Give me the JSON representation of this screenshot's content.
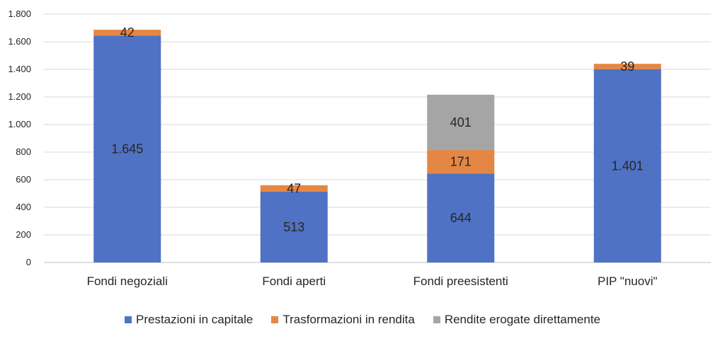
{
  "chart_data": {
    "type": "bar",
    "stacked": true,
    "categories": [
      "Fondi negoziali",
      "Fondi aperti",
      "Fondi preesistenti",
      "PIP \"nuovi\""
    ],
    "series": [
      {
        "name": "Prestazioni in capitale",
        "color": "#4f72c4",
        "values": [
          1645,
          513,
          644,
          1401
        ],
        "labels": [
          "1.645",
          "513",
          "644",
          "1.401"
        ]
      },
      {
        "name": "Trasformazioni in rendita",
        "color": "#e48744",
        "values": [
          42,
          47,
          171,
          39
        ],
        "labels": [
          "42",
          "47",
          "171",
          "39"
        ]
      },
      {
        "name": "Rendite erogate direttamente",
        "color": "#a5a5a5",
        "values": [
          0,
          0,
          401,
          0
        ],
        "labels": [
          "",
          "",
          "401",
          ""
        ]
      }
    ],
    "ylim": [
      0,
      1800
    ],
    "yticks": [
      0,
      200,
      400,
      600,
      800,
      1000,
      1200,
      1400,
      1600,
      1800
    ],
    "ytick_labels": [
      "0",
      "200",
      "400",
      "600",
      "800",
      "1.000",
      "1.200",
      "1.400",
      "1.600",
      "1.800"
    ],
    "grid": true,
    "legend_position": "bottom",
    "title": "",
    "xlabel": "",
    "ylabel": ""
  }
}
